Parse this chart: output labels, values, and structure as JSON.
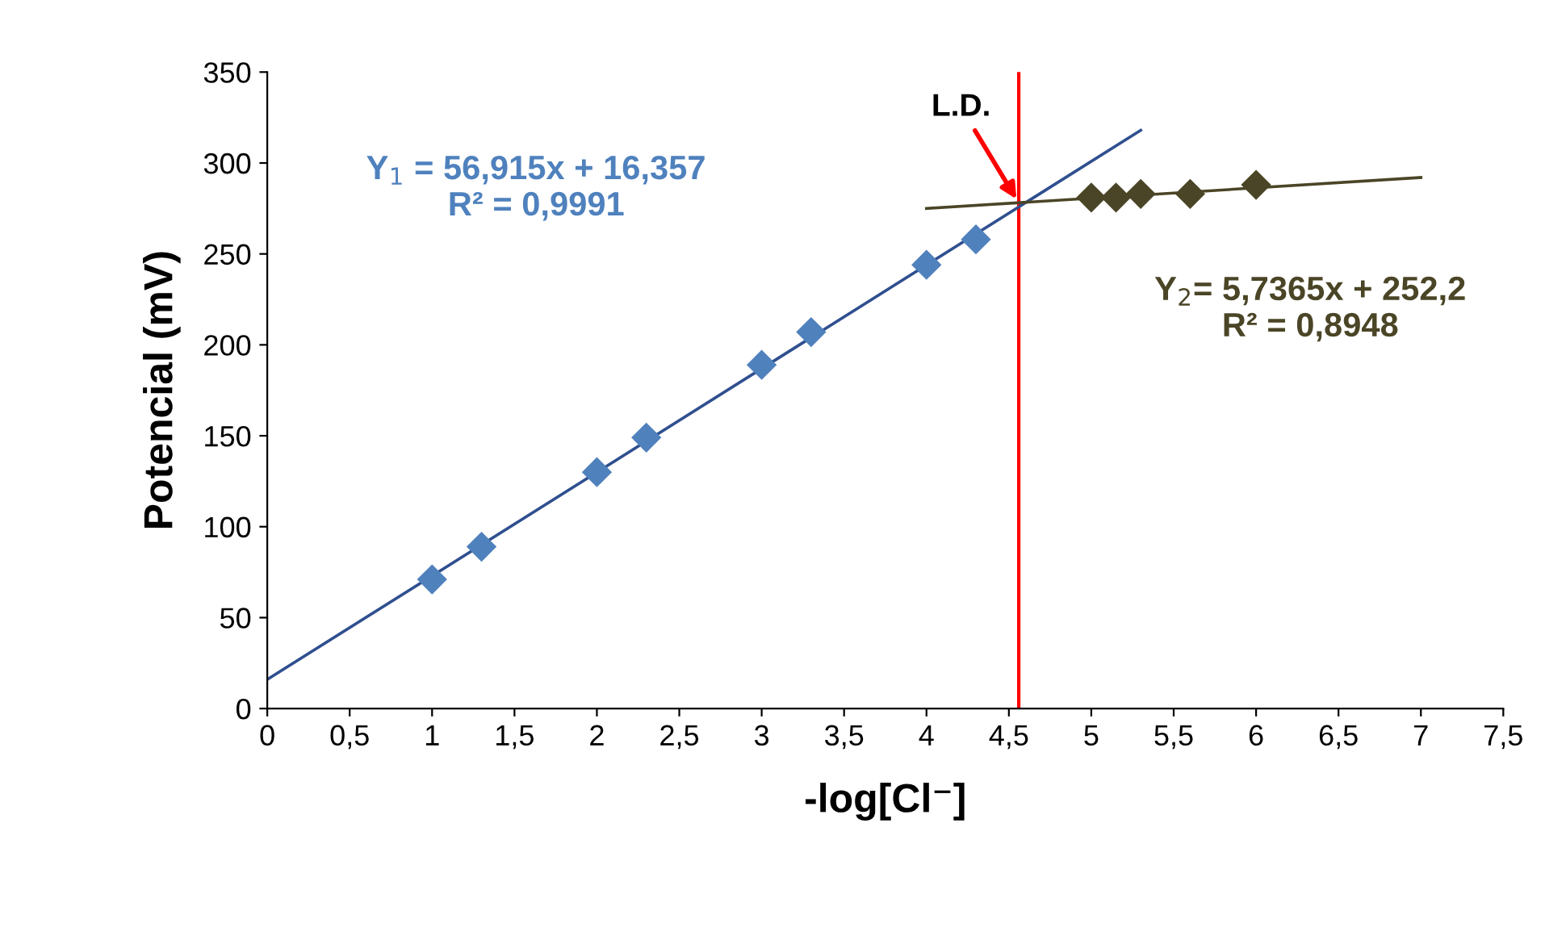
{
  "chart_data": {
    "type": "scatter",
    "xlabel": "-log[Cl⁻]",
    "ylabel": "Potencial (mV)",
    "xlim": [
      0,
      7.5
    ],
    "ylim": [
      0,
      350
    ],
    "xticks": [
      0,
      {
        "value": 0.5,
        "label": "0,5"
      },
      1,
      {
        "value": 1.5,
        "label": "1,5"
      },
      2,
      {
        "value": 2.5,
        "label": "2,5"
      },
      3,
      {
        "value": 3.5,
        "label": "3,5"
      },
      4,
      {
        "value": 4.5,
        "label": "4,5"
      },
      5,
      {
        "value": 5.5,
        "label": "5,5"
      },
      6,
      {
        "value": 6.5,
        "label": "6,5"
      },
      7,
      {
        "value": 7.5,
        "label": "7,5"
      }
    ],
    "yticks": [
      0,
      50,
      100,
      150,
      200,
      250,
      300,
      350
    ],
    "grid": false,
    "series": [
      {
        "marker": "diamond",
        "color": "#4f81bd",
        "x": [
          1,
          1.3,
          2,
          2.3,
          3,
          3.3,
          4,
          4.3
        ],
        "values": [
          71,
          89,
          130,
          149,
          189,
          207,
          244,
          258
        ]
      },
      {
        "marker": "diamond",
        "color": "#4a4526",
        "x": [
          5,
          5.15,
          5.3,
          5.6,
          6
        ],
        "values": [
          281,
          281,
          283,
          283,
          288
        ]
      },
      {
        "type": "line",
        "marker": "none",
        "color": "#2f4f8f",
        "x": [
          0,
          5.3
        ],
        "values": [
          16,
          318
        ]
      },
      {
        "type": "line",
        "marker": "none",
        "color": "#4a4526",
        "x": [
          4,
          7
        ],
        "values": [
          275,
          292
        ]
      }
    ],
    "ref_lines": [
      {
        "axis": "x",
        "value": 4.56,
        "color": "#ff0000"
      }
    ],
    "annotations": [
      {
        "text": "L.D.",
        "x": 4.56,
        "y": 278
      },
      "Y$_{1}$ = 56,915x + 16,357\nR² = 0,9991",
      "Y$_{2}$= 5,7365x + 252,2\nR² = 0,8948"
    ]
  }
}
